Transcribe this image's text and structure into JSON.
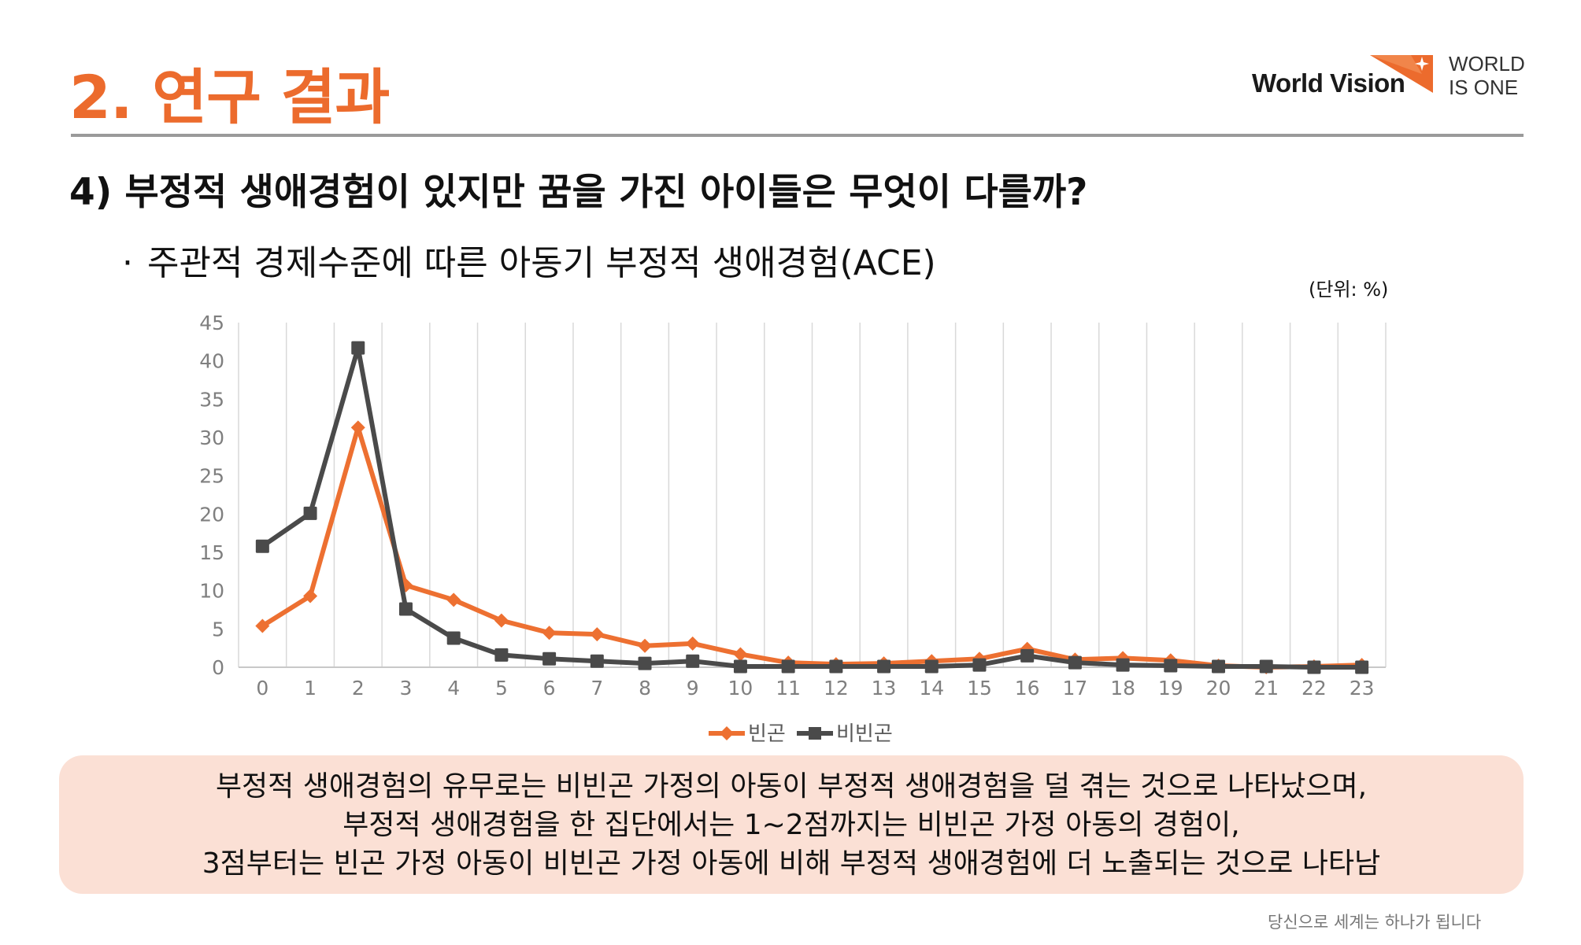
{
  "header": {
    "section_title": "2. 연구 결과",
    "logo_brand": "World Vision",
    "logo_tagline_line1": "WORLD",
    "logo_tagline_line2": "IS ONE"
  },
  "question": "4) 부정적 생애경험이 있지만 꿈을 가진 아이들은 무엇이 다를까?",
  "subtitle": {
    "bullet": "·",
    "text": "주관적 경제수준에 따른 아동기 부정적 생애경험(ACE)"
  },
  "unit_note": "(단위: %)",
  "colors": {
    "accent": "#ec6b2d",
    "series_poor": "#ed7031",
    "series_nonpoor": "#4a4a4a",
    "summary_bg": "#fbe0d5",
    "divider": "#9a9a9a"
  },
  "chart_data": {
    "type": "line",
    "x": [
      0,
      1,
      2,
      3,
      4,
      5,
      6,
      7,
      8,
      9,
      10,
      11,
      12,
      13,
      14,
      15,
      16,
      17,
      18,
      19,
      20,
      21,
      22,
      23
    ],
    "series": [
      {
        "name": "빈곤",
        "marker": "diamond",
        "values": [
          5.4,
          9.3,
          31.3,
          10.7,
          8.8,
          6.1,
          4.5,
          4.3,
          2.8,
          3.1,
          1.7,
          0.6,
          0.4,
          0.5,
          0.8,
          1.1,
          2.4,
          1.0,
          1.2,
          0.9,
          0.2,
          0.0,
          0.1,
          0.3
        ]
      },
      {
        "name": "비빈곤",
        "marker": "square",
        "values": [
          15.8,
          20.1,
          41.7,
          7.6,
          3.8,
          1.6,
          1.1,
          0.8,
          0.5,
          0.8,
          0.1,
          0.1,
          0.1,
          0.1,
          0.1,
          0.3,
          1.5,
          0.6,
          0.3,
          0.2,
          0.1,
          0.1,
          0.0,
          0.0
        ]
      }
    ],
    "ylim": [
      0,
      45
    ],
    "y_ticks": [
      0,
      5,
      10,
      15,
      20,
      25,
      30,
      35,
      40,
      45
    ],
    "grid": "vertical",
    "legend_position": "bottom-center"
  },
  "summary": {
    "line1": "부정적 생애경험의 유무로는 비빈곤 가정의 아동이 부정적 생애경험을 덜 겪는 것으로 나타났으며,",
    "line2": "부정적 생애경험을 한 집단에서는 1~2점까지는 비빈곤 가정 아동의 경험이,",
    "line3": "3점부터는 빈곤 가정 아동이  비빈곤 가정 아동에 비해 부정적 생애경험에 더 노출되는 것으로 나타남"
  },
  "footer": "당신으로 세계는 하나가 됩니다"
}
